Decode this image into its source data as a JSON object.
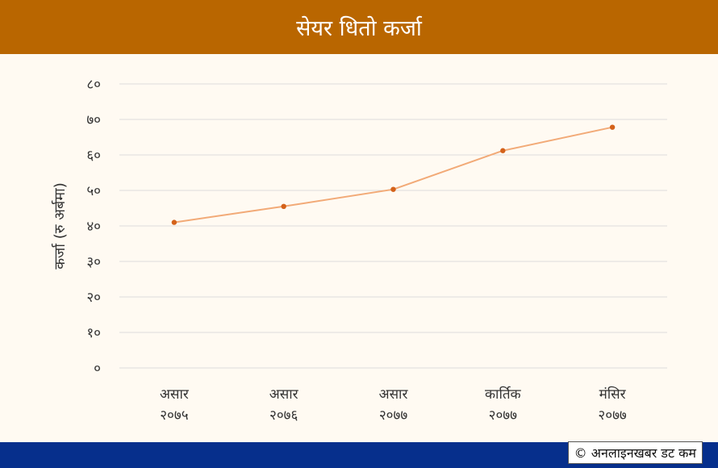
{
  "header": {
    "title": "सेयर धितो कर्जा"
  },
  "footer": {
    "credit": "© अनलाइनखबर डट कम"
  },
  "colors": {
    "header_bg": "#b96600",
    "footer_bg": "#062f8c",
    "line": "#f2aa77",
    "marker": "#d4621a",
    "background": "#fffaf2"
  },
  "chart_data": {
    "type": "line",
    "title": "सेयर धितो कर्जा",
    "ylabel": "कर्जा (रु अर्बमा)",
    "xlabel": "",
    "ylim": [
      0,
      80
    ],
    "yticks": [
      0,
      10,
      20,
      30,
      40,
      50,
      60,
      70,
      80
    ],
    "ytick_labels": [
      "०",
      "१०",
      "२०",
      "३०",
      "४०",
      "५०",
      "६०",
      "७०",
      "८०"
    ],
    "categories": [
      [
        "असार",
        "२०७५"
      ],
      [
        "असार",
        "२०७६"
      ],
      [
        "असार",
        "२०७७"
      ],
      [
        "कार्तिक",
        "२०७७"
      ],
      [
        "मंसिर",
        "२०७७"
      ]
    ],
    "series": [
      {
        "values": [
          41,
          45.5,
          50.3,
          61.2,
          67.8
        ]
      }
    ],
    "grid": true,
    "legend": "none"
  }
}
